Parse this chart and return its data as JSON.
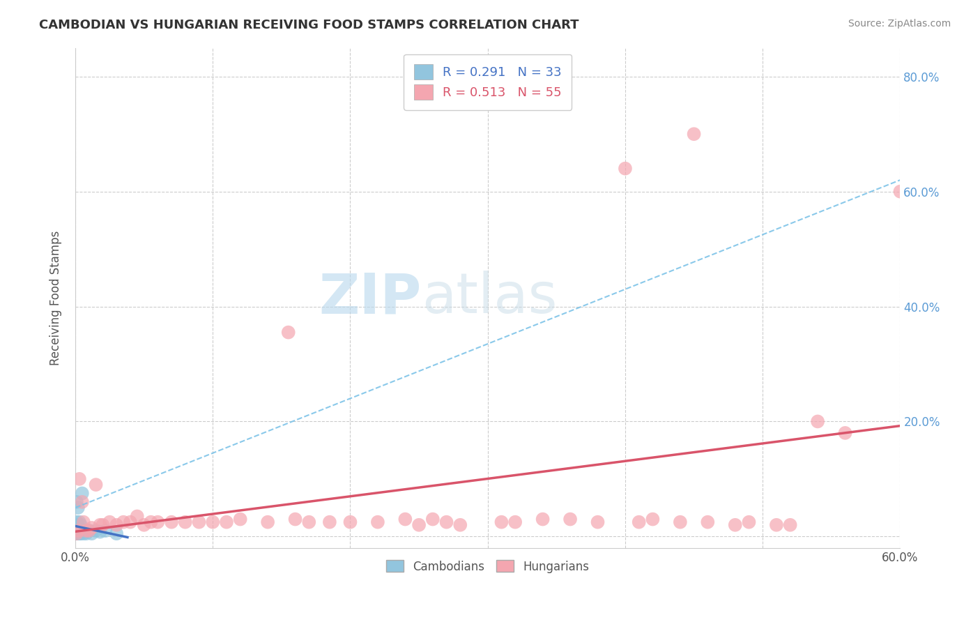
{
  "title": "CAMBODIAN VS HUNGARIAN RECEIVING FOOD STAMPS CORRELATION CHART",
  "source": "Source: ZipAtlas.com",
  "ylabel": "Receiving Food Stamps",
  "legend_cambodian": "R = 0.291   N = 33",
  "legend_hungarian": "R = 0.513   N = 55",
  "cambodian_color": "#92C5DE",
  "hungarian_color": "#F4A6B0",
  "cambodian_line_color": "#4472C4",
  "hungarian_line_color": "#D9546A",
  "xmin": 0.0,
  "xmax": 0.6,
  "ymin": -0.02,
  "ymax": 0.85,
  "background_color": "#ffffff",
  "grid_color": "#cccccc",
  "watermark_zip": "ZIP",
  "watermark_atlas": "atlas",
  "cambodian_x": [
    0.0005,
    0.0005,
    0.0005,
    0.001,
    0.001,
    0.001,
    0.001,
    0.001,
    0.001,
    0.002,
    0.002,
    0.002,
    0.002,
    0.002,
    0.003,
    0.003,
    0.003,
    0.003,
    0.004,
    0.004,
    0.004,
    0.005,
    0.005,
    0.006,
    0.006,
    0.007,
    0.008,
    0.01,
    0.012,
    0.015,
    0.018,
    0.022,
    0.03
  ],
  "cambodian_y": [
    0.005,
    0.01,
    0.015,
    0.005,
    0.01,
    0.015,
    0.02,
    0.025,
    0.06,
    0.005,
    0.008,
    0.01,
    0.015,
    0.05,
    0.005,
    0.008,
    0.015,
    0.025,
    0.005,
    0.008,
    0.02,
    0.01,
    0.075,
    0.005,
    0.01,
    0.008,
    0.005,
    0.01,
    0.005,
    0.01,
    0.008,
    0.01,
    0.005
  ],
  "hungarian_x": [
    0.001,
    0.002,
    0.003,
    0.005,
    0.006,
    0.008,
    0.01,
    0.012,
    0.015,
    0.018,
    0.02,
    0.025,
    0.03,
    0.035,
    0.04,
    0.045,
    0.05,
    0.055,
    0.06,
    0.07,
    0.08,
    0.09,
    0.1,
    0.11,
    0.12,
    0.14,
    0.155,
    0.16,
    0.17,
    0.185,
    0.2,
    0.22,
    0.24,
    0.25,
    0.26,
    0.27,
    0.28,
    0.31,
    0.32,
    0.34,
    0.36,
    0.38,
    0.4,
    0.41,
    0.42,
    0.44,
    0.45,
    0.46,
    0.48,
    0.49,
    0.51,
    0.52,
    0.54,
    0.56,
    0.6
  ],
  "hungarian_y": [
    0.005,
    0.01,
    0.1,
    0.06,
    0.025,
    0.01,
    0.01,
    0.015,
    0.09,
    0.02,
    0.02,
    0.025,
    0.02,
    0.025,
    0.025,
    0.035,
    0.02,
    0.025,
    0.025,
    0.025,
    0.025,
    0.025,
    0.025,
    0.025,
    0.03,
    0.025,
    0.355,
    0.03,
    0.025,
    0.025,
    0.025,
    0.025,
    0.03,
    0.02,
    0.03,
    0.025,
    0.02,
    0.025,
    0.025,
    0.03,
    0.03,
    0.025,
    0.64,
    0.025,
    0.03,
    0.025,
    0.7,
    0.025,
    0.02,
    0.025,
    0.02,
    0.02,
    0.2,
    0.18,
    0.6
  ]
}
